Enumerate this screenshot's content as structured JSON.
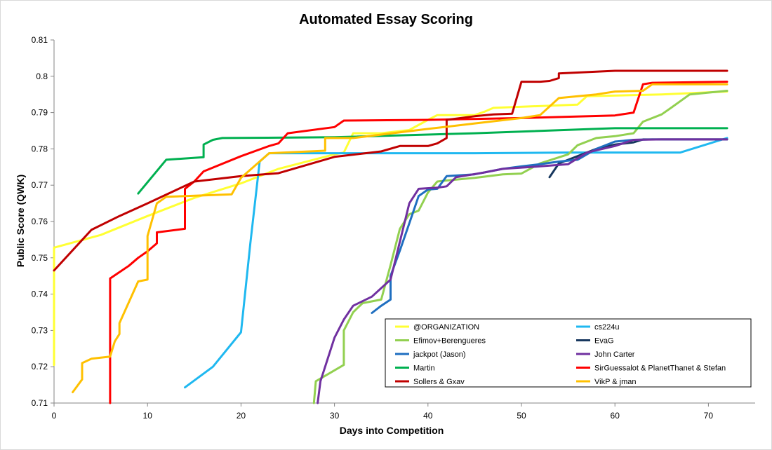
{
  "chart_data": {
    "type": "line",
    "title": "Automated Essay Scoring",
    "xlabel": "Days into Competition",
    "ylabel": "Public Score (QWK)",
    "xlim": [
      0,
      75
    ],
    "ylim": [
      0.71,
      0.81
    ],
    "xticks": [
      0,
      10,
      20,
      30,
      40,
      50,
      60,
      70
    ],
    "yticks": [
      0.71,
      0.72,
      0.73,
      0.74,
      0.75,
      0.76,
      0.77,
      0.78,
      0.79,
      0.8,
      0.81
    ],
    "grid": false,
    "legend": "bottom-right",
    "series": [
      {
        "name": "@ORGANIZATION",
        "color": "#ffff33",
        "points": [
          [
            0,
            0.7205
          ],
          [
            0,
            0.7528
          ],
          [
            5,
            0.7563
          ],
          [
            10,
            0.7615
          ],
          [
            15,
            0.7665
          ],
          [
            20,
            0.7705
          ],
          [
            24,
            0.7745
          ],
          [
            30,
            0.7785
          ],
          [
            31,
            0.779
          ],
          [
            32,
            0.7843
          ],
          [
            35,
            0.7843
          ],
          [
            38,
            0.7852
          ],
          [
            40,
            0.788
          ],
          [
            41,
            0.7893
          ],
          [
            45,
            0.7893
          ],
          [
            46,
            0.7902
          ],
          [
            47,
            0.7913
          ],
          [
            56,
            0.7922
          ],
          [
            57,
            0.7945
          ],
          [
            65,
            0.795
          ],
          [
            72,
            0.7958
          ]
        ]
      },
      {
        "name": "cs224u",
        "color": "#1fb8f0",
        "points": [
          [
            14,
            0.7143
          ],
          [
            17,
            0.72
          ],
          [
            20,
            0.7295
          ],
          [
            21,
            0.754
          ],
          [
            22,
            0.7765
          ],
          [
            23,
            0.7788
          ],
          [
            35,
            0.7788
          ],
          [
            45,
            0.7788
          ],
          [
            55,
            0.779
          ],
          [
            67,
            0.779
          ],
          [
            72,
            0.783
          ]
        ]
      },
      {
        "name": "Efimov+Berengueres",
        "color": "#92d050",
        "points": [
          [
            27.8,
            0.71
          ],
          [
            28,
            0.716
          ],
          [
            31,
            0.7205
          ],
          [
            31,
            0.73
          ],
          [
            32,
            0.735
          ],
          [
            33,
            0.7375
          ],
          [
            35,
            0.7385
          ],
          [
            36,
            0.748
          ],
          [
            37,
            0.758
          ],
          [
            38,
            0.762
          ],
          [
            39,
            0.763
          ],
          [
            40,
            0.768
          ],
          [
            41,
            0.771
          ],
          [
            42,
            0.7713
          ],
          [
            45,
            0.772
          ],
          [
            48,
            0.773
          ],
          [
            50,
            0.7732
          ],
          [
            52,
            0.776
          ],
          [
            55,
            0.7785
          ],
          [
            56,
            0.781
          ],
          [
            58,
            0.783
          ],
          [
            60,
            0.7835
          ],
          [
            62,
            0.7843
          ],
          [
            63,
            0.7875
          ],
          [
            65,
            0.7895
          ],
          [
            66,
            0.7913
          ],
          [
            68,
            0.795
          ],
          [
            70,
            0.7955
          ],
          [
            72,
            0.796
          ]
        ]
      },
      {
        "name": "EvaG",
        "color": "#17375e",
        "points": [
          [
            53,
            0.7722
          ],
          [
            54,
            0.776
          ],
          [
            56,
            0.778
          ],
          [
            58,
            0.78
          ],
          [
            60,
            0.7812
          ],
          [
            62,
            0.7818
          ],
          [
            63,
            0.7826
          ],
          [
            72,
            0.7826
          ]
        ]
      },
      {
        "name": "jackpot (Jason)",
        "color": "#1f6fc0",
        "points": [
          [
            34,
            0.7348
          ],
          [
            35,
            0.7368
          ],
          [
            36,
            0.7385
          ],
          [
            36,
            0.745
          ],
          [
            37,
            0.752
          ],
          [
            38,
            0.7595
          ],
          [
            39,
            0.767
          ],
          [
            40,
            0.7688
          ],
          [
            41,
            0.769
          ],
          [
            42,
            0.7725
          ],
          [
            45,
            0.773
          ],
          [
            48,
            0.7745
          ],
          [
            50,
            0.7752
          ],
          [
            52,
            0.7758
          ],
          [
            54,
            0.7765
          ],
          [
            56,
            0.777
          ],
          [
            58,
            0.78
          ],
          [
            60,
            0.782
          ],
          [
            62,
            0.7825
          ],
          [
            64,
            0.7826
          ],
          [
            72,
            0.7826
          ]
        ]
      },
      {
        "name": "John Carter",
        "color": "#7030a0",
        "points": [
          [
            28.2,
            0.71
          ],
          [
            28.5,
            0.716
          ],
          [
            30,
            0.728
          ],
          [
            31,
            0.733
          ],
          [
            32,
            0.7368
          ],
          [
            34,
            0.7393
          ],
          [
            36,
            0.744
          ],
          [
            38,
            0.765
          ],
          [
            39,
            0.769
          ],
          [
            41,
            0.7693
          ],
          [
            42,
            0.7697
          ],
          [
            43,
            0.7722
          ],
          [
            46,
            0.7735
          ],
          [
            48,
            0.7745
          ],
          [
            51,
            0.775
          ],
          [
            55,
            0.7758
          ],
          [
            57,
            0.779
          ],
          [
            60,
            0.7808
          ],
          [
            62,
            0.7825
          ],
          [
            65,
            0.7826
          ],
          [
            72,
            0.7826
          ]
        ]
      },
      {
        "name": "Martin",
        "color": "#00b050",
        "points": [
          [
            9,
            0.7677
          ],
          [
            12,
            0.777
          ],
          [
            16,
            0.7777
          ],
          [
            16,
            0.7812
          ],
          [
            17,
            0.7825
          ],
          [
            18,
            0.783
          ],
          [
            30,
            0.7832
          ],
          [
            45,
            0.7843
          ],
          [
            60,
            0.7857
          ],
          [
            72,
            0.7857
          ]
        ]
      },
      {
        "name": "SirGuessalot & PlanetThanet & Stefan",
        "color": "#ff0000",
        "points": [
          [
            6,
            0.71
          ],
          [
            6,
            0.7443
          ],
          [
            8,
            0.7478
          ],
          [
            9,
            0.75
          ],
          [
            10,
            0.7518
          ],
          [
            11,
            0.754
          ],
          [
            11,
            0.757
          ],
          [
            14,
            0.758
          ],
          [
            14,
            0.769
          ],
          [
            15,
            0.771
          ],
          [
            16,
            0.7738
          ],
          [
            20,
            0.778
          ],
          [
            23,
            0.7808
          ],
          [
            24,
            0.7815
          ],
          [
            25,
            0.7843
          ],
          [
            30,
            0.786
          ],
          [
            31,
            0.7878
          ],
          [
            40,
            0.788
          ],
          [
            50,
            0.7885
          ],
          [
            60,
            0.7892
          ],
          [
            62,
            0.79
          ],
          [
            63,
            0.7978
          ],
          [
            64,
            0.7982
          ],
          [
            72,
            0.7985
          ]
        ]
      },
      {
        "name": "Sollers & Gxav",
        "color": "#c00000",
        "points": [
          [
            0,
            0.7465
          ],
          [
            4,
            0.7577
          ],
          [
            7,
            0.7615
          ],
          [
            10,
            0.765
          ],
          [
            15,
            0.771
          ],
          [
            20,
            0.7725
          ],
          [
            24,
            0.7733
          ],
          [
            30,
            0.7778
          ],
          [
            35,
            0.7793
          ],
          [
            37,
            0.7808
          ],
          [
            40,
            0.7808
          ],
          [
            41,
            0.7815
          ],
          [
            42,
            0.783
          ],
          [
            42,
            0.788
          ],
          [
            45,
            0.789
          ],
          [
            47,
            0.7895
          ],
          [
            49,
            0.7897
          ],
          [
            50,
            0.7985
          ],
          [
            52,
            0.7985
          ],
          [
            53,
            0.7987
          ],
          [
            54,
            0.7995
          ],
          [
            54,
            0.8008
          ],
          [
            60,
            0.8015
          ],
          [
            72,
            0.8015
          ]
        ]
      },
      {
        "name": "VikP & jman",
        "color": "#ffc000",
        "points": [
          [
            2,
            0.713
          ],
          [
            3,
            0.7165
          ],
          [
            3,
            0.721
          ],
          [
            4,
            0.7222
          ],
          [
            6,
            0.7228
          ],
          [
            6.5,
            0.727
          ],
          [
            7,
            0.729
          ],
          [
            7,
            0.732
          ],
          [
            9,
            0.7435
          ],
          [
            10,
            0.744
          ],
          [
            10,
            0.756
          ],
          [
            11,
            0.765
          ],
          [
            12,
            0.7668
          ],
          [
            19,
            0.7675
          ],
          [
            20,
            0.772
          ],
          [
            23,
            0.7788
          ],
          [
            29,
            0.7795
          ],
          [
            29,
            0.783
          ],
          [
            32,
            0.783
          ],
          [
            40,
            0.7855
          ],
          [
            45,
            0.787
          ],
          [
            50,
            0.7885
          ],
          [
            52,
            0.7893
          ],
          [
            54,
            0.794
          ],
          [
            58,
            0.795
          ],
          [
            60,
            0.7958
          ],
          [
            63,
            0.796
          ],
          [
            64,
            0.7978
          ],
          [
            72,
            0.7978
          ]
        ]
      }
    ]
  }
}
